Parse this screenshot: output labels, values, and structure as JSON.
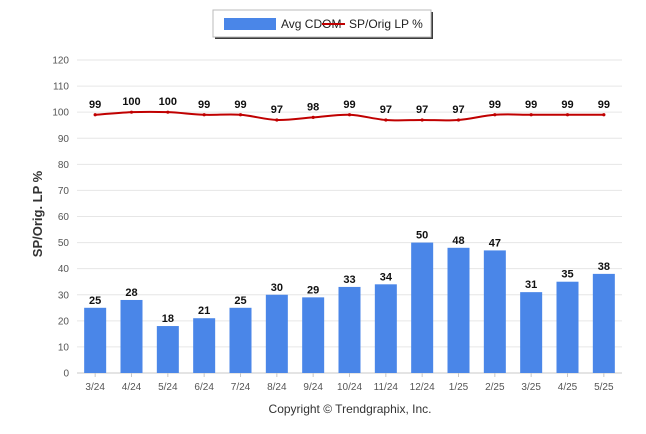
{
  "chart_data": {
    "type": "bar",
    "categories": [
      "3/24",
      "4/24",
      "5/24",
      "6/24",
      "7/24",
      "8/24",
      "9/24",
      "10/24",
      "11/24",
      "12/24",
      "1/25",
      "2/25",
      "3/25",
      "4/25",
      "5/25"
    ],
    "series": [
      {
        "name": "Avg CDOM",
        "type": "bar",
        "color": "#4a86e8",
        "values": [
          25,
          28,
          18,
          21,
          25,
          30,
          29,
          33,
          34,
          50,
          48,
          47,
          31,
          35,
          38
        ]
      },
      {
        "name": "SP/Orig LP %",
        "type": "line",
        "color": "#c00000",
        "values": [
          99,
          100,
          100,
          99,
          99,
          97,
          98,
          99,
          97,
          97,
          97,
          99,
          99,
          99,
          99
        ]
      }
    ],
    "ylabel": "SP/Orig. LP %",
    "ylim": [
      0,
      120
    ],
    "yticks": [
      0,
      10,
      20,
      30,
      40,
      50,
      60,
      70,
      80,
      90,
      100,
      110,
      120
    ],
    "grid": true,
    "legend_position": "top-center",
    "data_labels": true
  },
  "footer": {
    "copyright": "Copyright © Trendgraphix, Inc."
  }
}
